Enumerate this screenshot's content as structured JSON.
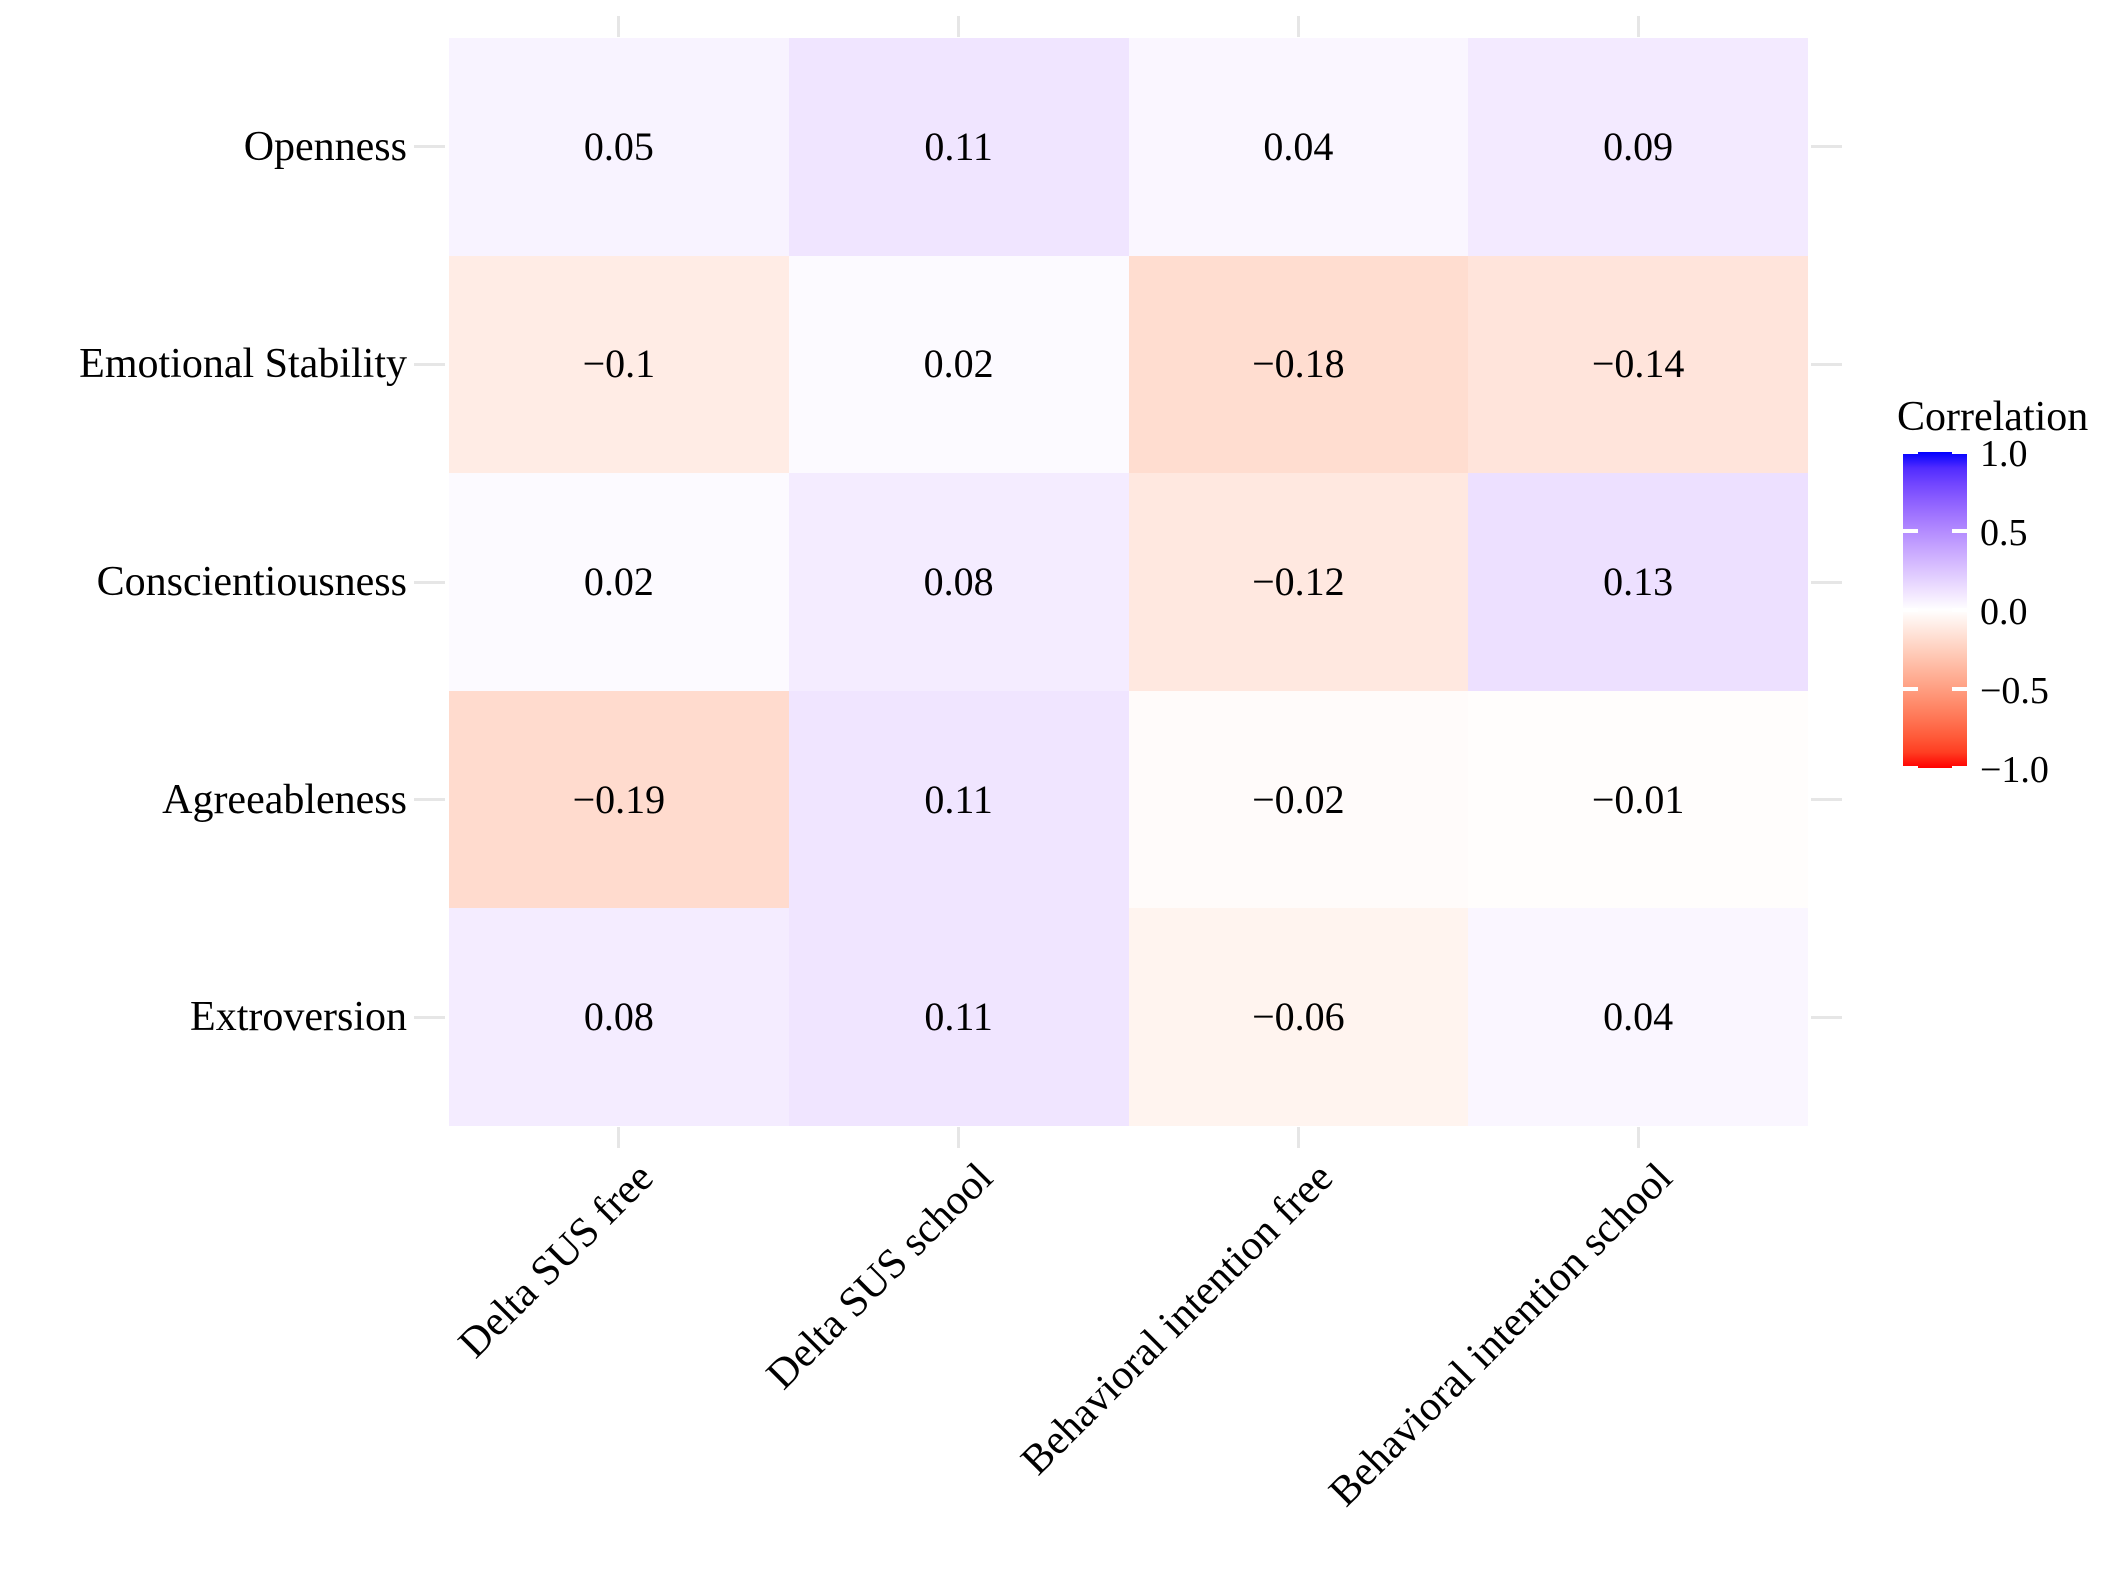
{
  "chart_data": {
    "type": "heatmap",
    "title": "",
    "rows": [
      "Openness",
      "Emotional Stability",
      "Conscientiousness",
      "Agreeableness",
      "Extroversion"
    ],
    "columns": [
      "Delta SUS free",
      "Delta SUS school",
      "Behavioral intention free",
      "Behavioral intention school"
    ],
    "values": [
      [
        0.05,
        0.11,
        0.04,
        0.09
      ],
      [
        -0.1,
        0.02,
        -0.18,
        -0.14
      ],
      [
        0.02,
        0.08,
        -0.12,
        0.13
      ],
      [
        -0.19,
        0.11,
        -0.02,
        -0.01
      ],
      [
        0.08,
        0.11,
        -0.06,
        0.04
      ]
    ],
    "value_labels": [
      [
        "0.05",
        "0.11",
        "0.04",
        "0.09"
      ],
      [
        "−0.1",
        "0.02",
        "−0.18",
        "−0.14"
      ],
      [
        "0.02",
        "0.08",
        "−0.12",
        "0.13"
      ],
      [
        "−0.19",
        "0.11",
        "−0.02",
        "−0.01"
      ],
      [
        "0.08",
        "0.11",
        "−0.06",
        "0.04"
      ]
    ],
    "colorscale": {
      "low_color": "#ff0000",
      "mid_color": "#ffffff",
      "high_color": "#0000ff",
      "domain": [
        -1,
        0,
        1
      ],
      "interpolation": "lab"
    },
    "legend": {
      "title": "Correlation",
      "position": "right",
      "tick_labels": [
        "1.0",
        "0.5",
        "0.0",
        "−0.5",
        "−1.0"
      ],
      "tick_values": [
        1.0,
        0.5,
        0.0,
        -0.5,
        -1.0
      ]
    },
    "axes": {
      "x_label_angle_deg": 45,
      "tick_color": "#e6e6e6",
      "text_color": "#000000",
      "grid": false
    },
    "background_color": "#ffffff"
  }
}
